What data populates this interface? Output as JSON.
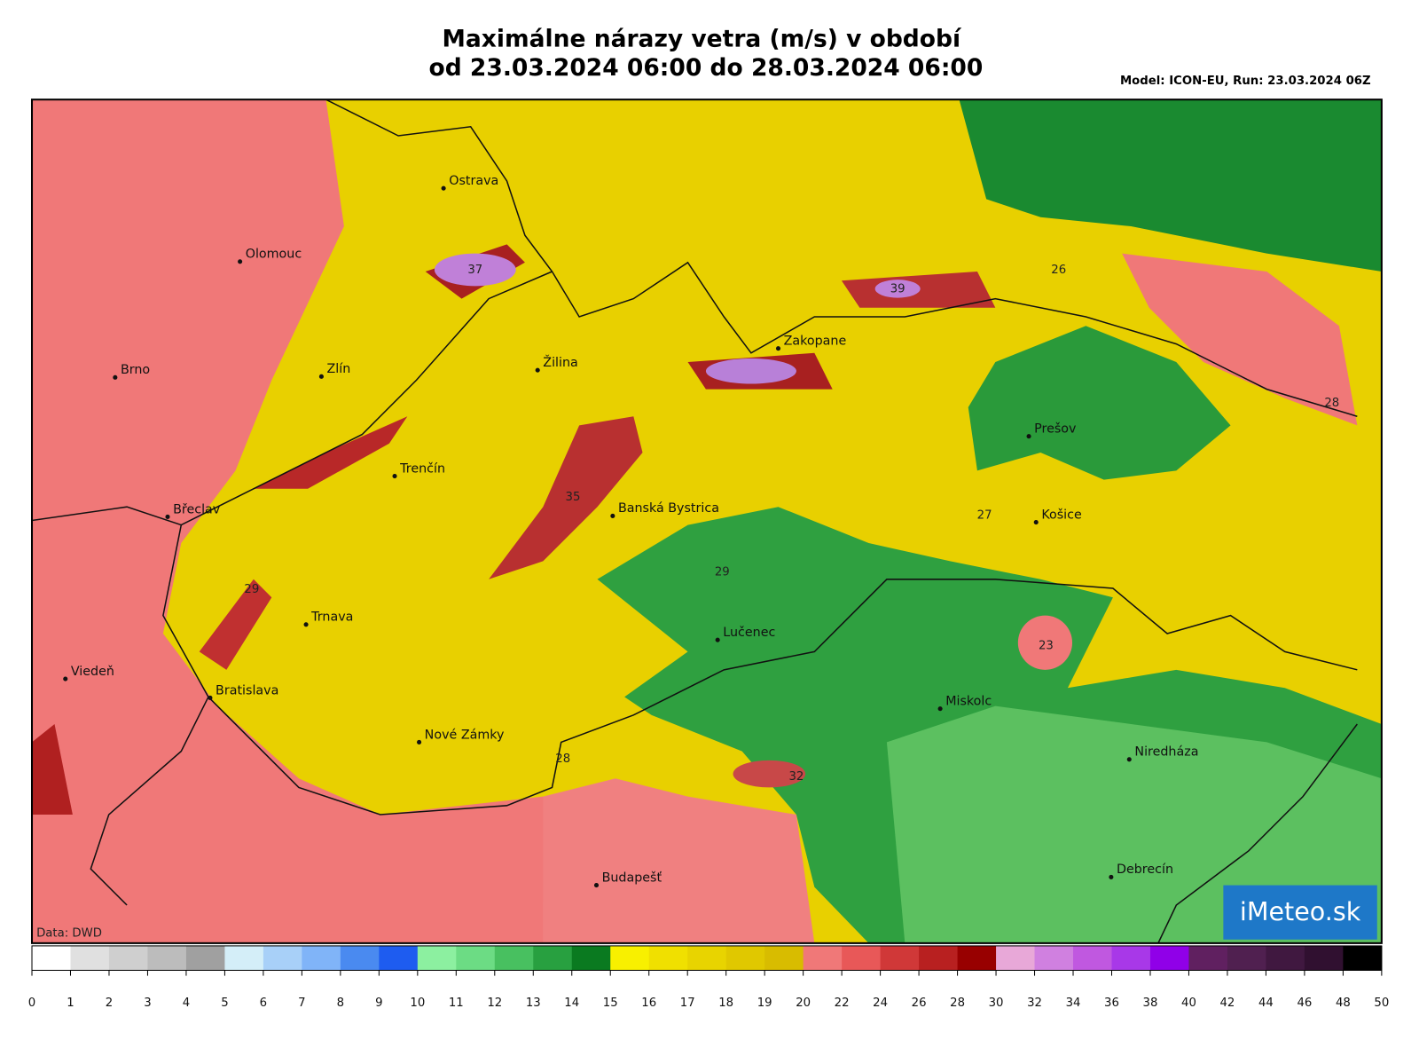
{
  "header": {
    "title_line1": "Maximálne nárazy vetra (m/s) v období",
    "title_line2": "od 23.03.2024 06:00 do 28.03.2024 06:00",
    "model": "Model: ICON-EU, Run: 23.03.2024 06Z"
  },
  "map": {
    "cities": [
      "Ostrava",
      "Olomouc",
      "Brno",
      "Zlín",
      "Žilina",
      "Zakopane",
      "Trenčín",
      "Břeclav",
      "Banská Bystrica",
      "Prešov",
      "Košice",
      "Trnava",
      "Lučenec",
      "Viedeň",
      "Bratislava",
      "Miskolc",
      "Nové Zámky",
      "Niredháza",
      "Budapešť",
      "Debrecín"
    ],
    "value_labels": [
      37,
      39,
      26,
      28,
      35,
      27,
      29,
      29,
      23,
      28,
      32
    ],
    "source": "Data: DWD",
    "logo": "iMeteo.sk"
  },
  "colorbar": {
    "ticks": [
      0,
      1,
      2,
      3,
      4,
      5,
      6,
      7,
      8,
      9,
      10,
      11,
      12,
      13,
      14,
      15,
      16,
      17,
      18,
      19,
      20,
      22,
      24,
      26,
      28,
      30,
      32,
      34,
      36,
      38,
      40,
      42,
      44,
      46,
      48,
      50
    ],
    "colors": [
      "#ffffff",
      "#e0e0e0",
      "#cfcfcf",
      "#bcbcbc",
      "#a0a0a0",
      "#d4eef8",
      "#a8d0f8",
      "#80b4f8",
      "#4a8af0",
      "#1e5cf0",
      "#8cf0a0",
      "#6cdc84",
      "#48c060",
      "#28a040",
      "#0a7a20",
      "#f8f000",
      "#f0e000",
      "#e8d400",
      "#e0c800",
      "#d8bc00",
      "#f07878",
      "#e85858",
      "#d03838",
      "#b82020",
      "#980000",
      "#e8a8d8",
      "#d080e0",
      "#c058e0",
      "#a838e8",
      "#9000e8",
      "#602060",
      "#502050",
      "#401840",
      "#301030",
      "#000000"
    ]
  }
}
